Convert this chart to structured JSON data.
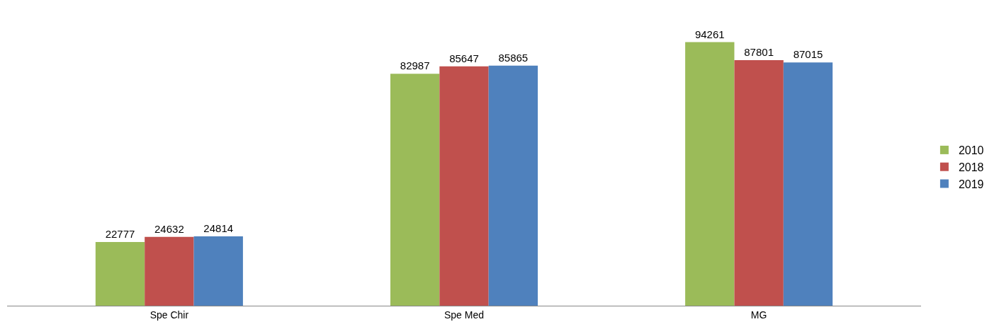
{
  "chart_data": {
    "type": "bar",
    "categories": [
      "Spe Chir",
      "Spe Med",
      "MG"
    ],
    "series": [
      {
        "name": "2010",
        "color": "#9bbb59",
        "values": [
          22777,
          82987,
          94261
        ]
      },
      {
        "name": "2018",
        "color": "#c0504d",
        "values": [
          24632,
          85647,
          87801
        ]
      },
      {
        "name": "2019",
        "color": "#4f81bd",
        "values": [
          24814,
          85865,
          87015
        ]
      }
    ],
    "data_labels": true,
    "legend": "right"
  }
}
